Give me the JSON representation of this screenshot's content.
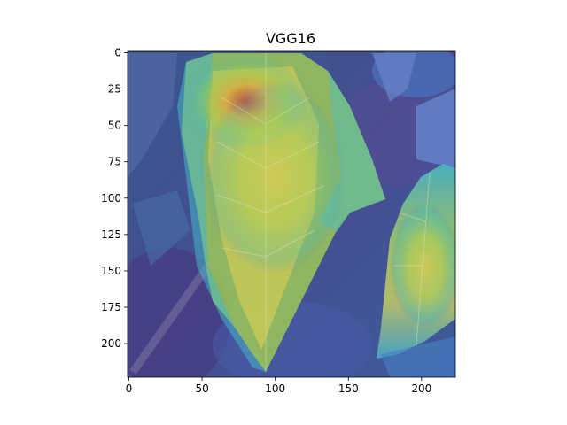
{
  "figure": {
    "title": "VGG16"
  },
  "image": {
    "description_kind": "leaf",
    "overlay_colormap": "jet",
    "overlay_alpha": 0.5,
    "extent": {
      "xmin": 0,
      "xmax": 224,
      "ymin": 0,
      "ymax": 224
    }
  },
  "axes": {
    "x_ticks": [
      {
        "value": 0,
        "label": "0"
      },
      {
        "value": 50,
        "label": "50"
      },
      {
        "value": 100,
        "label": "100"
      },
      {
        "value": 150,
        "label": "150"
      },
      {
        "value": 200,
        "label": "200"
      }
    ],
    "y_ticks": [
      {
        "value": 0,
        "label": "0"
      },
      {
        "value": 25,
        "label": "25"
      },
      {
        "value": 50,
        "label": "50"
      },
      {
        "value": 75,
        "label": "75"
      },
      {
        "value": 100,
        "label": "100"
      },
      {
        "value": 125,
        "label": "125"
      },
      {
        "value": 150,
        "label": "150"
      },
      {
        "value": 175,
        "label": "175"
      },
      {
        "value": 200,
        "label": "200"
      }
    ]
  }
}
